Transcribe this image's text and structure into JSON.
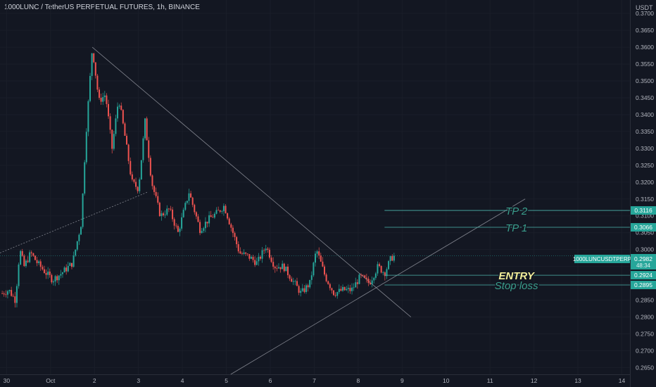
{
  "header": {
    "title": "1000LUNC / TetherUS PERPETUAL FUTURES, 1h, BINANCE",
    "currency": "USDT"
  },
  "colors": {
    "background": "#131722",
    "up": "#26a69a",
    "down": "#ef5350",
    "level_line": "#4db6ac",
    "tp_text": "#3a9e8c",
    "entry_text": "#f2ee9a",
    "axis_text": "#b2b5be"
  },
  "price_badge": {
    "symbol": "1000LUNCUSDTPERP",
    "price": "0.2982",
    "countdown": "48:34"
  },
  "levels": [
    {
      "label": "TP 2",
      "price": 0.3116,
      "tag": "0.3116",
      "style": "tp"
    },
    {
      "label": "TP 1",
      "price": 0.3066,
      "tag": "0.3066",
      "style": "tp"
    },
    {
      "label": "ENTRY",
      "price": 0.2924,
      "tag": "0.2924",
      "style": "entry"
    },
    {
      "label": "Stop loss",
      "price": 0.2895,
      "tag": "0.2895",
      "style": "tp"
    }
  ],
  "chart_data": {
    "type": "candlestick",
    "symbol": "1000LUNCUSDTPERP",
    "timeframe": "1h",
    "ylim": [
      0.263,
      0.374
    ],
    "xlim": [
      -0.05,
      14.3
    ],
    "y_ticks": [
      "0.2650",
      "0.2700",
      "0.2750",
      "0.2800",
      "0.2850",
      "0.2900",
      "0.2950",
      "0.3000",
      "0.3050",
      "0.3100",
      "0.3150",
      "0.3200",
      "0.3250",
      "0.3300",
      "0.3350",
      "0.3400",
      "0.3450",
      "0.3500",
      "0.3550",
      "0.3600",
      "0.3650",
      "0.3700"
    ],
    "x_ticks": [
      {
        "label": "30",
        "x": 0.1
      },
      {
        "label": "Oct",
        "x": 1.1
      },
      {
        "label": "2",
        "x": 2.1
      },
      {
        "label": "3",
        "x": 3.1
      },
      {
        "label": "4",
        "x": 4.1
      },
      {
        "label": "5",
        "x": 5.1
      },
      {
        "label": "6",
        "x": 6.1
      },
      {
        "label": "7",
        "x": 7.1
      },
      {
        "label": "8",
        "x": 8.1
      },
      {
        "label": "9",
        "x": 9.1
      },
      {
        "label": "10",
        "x": 10.1
      },
      {
        "label": "11",
        "x": 11.1
      },
      {
        "label": "12",
        "x": 12.1
      },
      {
        "label": "13",
        "x": 13.1
      },
      {
        "label": "14",
        "x": 14.1
      }
    ],
    "close_path": [
      [
        0.0,
        0.287
      ],
      [
        0.15,
        0.288
      ],
      [
        0.3,
        0.285
      ],
      [
        0.4,
        0.3
      ],
      [
        0.5,
        0.295
      ],
      [
        0.65,
        0.299
      ],
      [
        0.8,
        0.296
      ],
      [
        1.0,
        0.293
      ],
      [
        1.15,
        0.291
      ],
      [
        1.35,
        0.293
      ],
      [
        1.6,
        0.296
      ],
      [
        1.8,
        0.308
      ],
      [
        1.9,
        0.333
      ],
      [
        2.05,
        0.36
      ],
      [
        2.2,
        0.344
      ],
      [
        2.35,
        0.346
      ],
      [
        2.5,
        0.33
      ],
      [
        2.65,
        0.345
      ],
      [
        2.8,
        0.333
      ],
      [
        2.95,
        0.32
      ],
      [
        3.1,
        0.318
      ],
      [
        3.25,
        0.338
      ],
      [
        3.4,
        0.32
      ],
      [
        3.6,
        0.31
      ],
      [
        3.8,
        0.312
      ],
      [
        4.0,
        0.305
      ],
      [
        4.25,
        0.317
      ],
      [
        4.5,
        0.306
      ],
      [
        4.7,
        0.309
      ],
      [
        4.9,
        0.311
      ],
      [
        5.05,
        0.313
      ],
      [
        5.2,
        0.307
      ],
      [
        5.4,
        0.299
      ],
      [
        5.6,
        0.298
      ],
      [
        5.8,
        0.296
      ],
      [
        6.0,
        0.301
      ],
      [
        6.2,
        0.295
      ],
      [
        6.4,
        0.295
      ],
      [
        6.6,
        0.291
      ],
      [
        6.8,
        0.287
      ],
      [
        7.0,
        0.29
      ],
      [
        7.15,
        0.3
      ],
      [
        7.35,
        0.292
      ],
      [
        7.55,
        0.287
      ],
      [
        7.75,
        0.288
      ],
      [
        7.95,
        0.288
      ],
      [
        8.15,
        0.292
      ],
      [
        8.35,
        0.29
      ],
      [
        8.55,
        0.295
      ],
      [
        8.7,
        0.293
      ],
      [
        8.85,
        0.2975
      ],
      [
        8.95,
        0.2982
      ]
    ],
    "trend_lines": [
      {
        "name": "descending",
        "points": [
          [
            2.05,
            0.36
          ],
          [
            9.3,
            0.28
          ]
        ]
      },
      {
        "name": "ascending",
        "points": [
          [
            5.2,
            0.263
          ],
          [
            11.9,
            0.315
          ]
        ]
      },
      {
        "name": "pre-breakout dotted",
        "points": [
          [
            -0.05,
            0.299
          ],
          [
            3.3,
            0.317
          ]
        ]
      }
    ]
  }
}
